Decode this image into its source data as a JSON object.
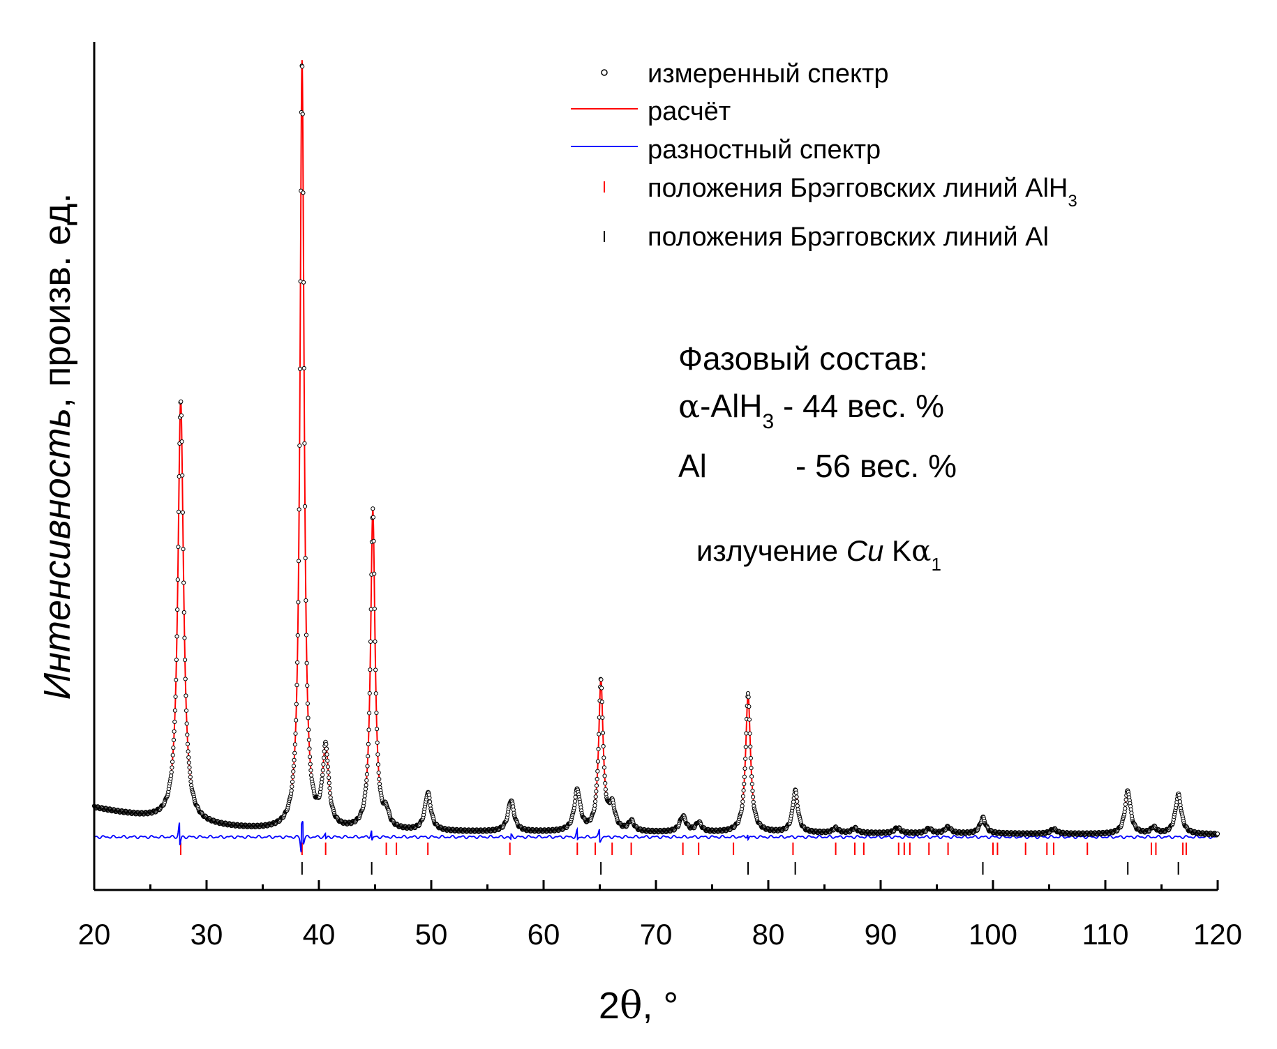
{
  "chart_data": {
    "type": "line",
    "title": "",
    "xlabel_prefix": "2",
    "xlabel_symbol": "θ",
    "xlabel_suffix": ", °",
    "ylabel_italic": "Интенсивность",
    "ylabel_rest": ", произв. ед.",
    "xlim": [
      20,
      120
    ],
    "ylim": [
      -0.08,
      1.0
    ],
    "xticks": [
      "20",
      "30",
      "40",
      "50",
      "60",
      "70",
      "80",
      "90",
      "100",
      "110",
      "120"
    ],
    "yaxis_ticks_labels": false,
    "grid": false,
    "legend_position": "top-right",
    "colors": {
      "observed": "#000000",
      "calculated": "#ff0000",
      "difference": "#0000ff",
      "bragg_alh3": "#ff0000",
      "bragg_al": "#000000"
    },
    "series": [
      {
        "name": "измеренный спектр",
        "style": "open-circles",
        "color": "#000000"
      },
      {
        "name": "расчёт",
        "style": "line",
        "color": "#ff0000"
      },
      {
        "name": "разностный спектр",
        "style": "line",
        "color": "#0000ff"
      },
      {
        "name": "положения Брэгговских линий AlH",
        "name_sub": "3",
        "style": "tick",
        "color": "#ff0000"
      },
      {
        "name": "положения Брэгговских линий Al",
        "style": "tick",
        "color": "#000000"
      }
    ],
    "background": {
      "at20": 0.03,
      "at40": 0.0,
      "at120": -0.004
    },
    "peaks": [
      {
        "x": 27.7,
        "height": 0.535,
        "width": 0.3
      },
      {
        "x": 38.5,
        "height": 0.975,
        "width": 0.22
      },
      {
        "x": 40.6,
        "height": 0.1,
        "width": 0.32
      },
      {
        "x": 44.8,
        "height": 0.405,
        "width": 0.24
      },
      {
        "x": 46.0,
        "height": 0.018,
        "width": 0.3
      },
      {
        "x": 49.7,
        "height": 0.048,
        "width": 0.32
      },
      {
        "x": 57.1,
        "height": 0.04,
        "width": 0.32
      },
      {
        "x": 63.0,
        "height": 0.052,
        "width": 0.32
      },
      {
        "x": 65.1,
        "height": 0.19,
        "width": 0.24
      },
      {
        "x": 66.1,
        "height": 0.03,
        "width": 0.32
      },
      {
        "x": 67.8,
        "height": 0.013,
        "width": 0.3
      },
      {
        "x": 72.4,
        "height": 0.02,
        "width": 0.34
      },
      {
        "x": 73.8,
        "height": 0.012,
        "width": 0.3
      },
      {
        "x": 78.2,
        "height": 0.175,
        "width": 0.26
      },
      {
        "x": 82.4,
        "height": 0.053,
        "width": 0.28
      },
      {
        "x": 86.0,
        "height": 0.006,
        "width": 0.3
      },
      {
        "x": 87.7,
        "height": 0.006,
        "width": 0.3
      },
      {
        "x": 91.5,
        "height": 0.007,
        "width": 0.32
      },
      {
        "x": 94.3,
        "height": 0.006,
        "width": 0.3
      },
      {
        "x": 96.0,
        "height": 0.008,
        "width": 0.32
      },
      {
        "x": 99.1,
        "height": 0.02,
        "width": 0.3
      },
      {
        "x": 105.4,
        "height": 0.006,
        "width": 0.34
      },
      {
        "x": 112.0,
        "height": 0.055,
        "width": 0.3
      },
      {
        "x": 114.3,
        "height": 0.008,
        "width": 0.3
      },
      {
        "x": 116.5,
        "height": 0.05,
        "width": 0.32
      }
    ],
    "bragg_alh3": [
      27.7,
      38.5,
      40.6,
      46.0,
      46.9,
      49.7,
      57.0,
      63.0,
      64.6,
      66.1,
      67.8,
      72.4,
      73.8,
      76.9,
      82.2,
      86.0,
      87.7,
      88.5,
      91.6,
      92.1,
      92.6,
      94.3,
      96.0,
      100.0,
      100.4,
      102.9,
      104.8,
      105.4,
      108.4,
      114.1,
      114.5,
      116.9,
      117.2
    ],
    "bragg_al": [
      38.5,
      44.7,
      65.1,
      78.2,
      82.4,
      99.1,
      112.0,
      116.5
    ],
    "difference_spikes": [
      {
        "x": 27.6,
        "amp": 0.018
      },
      {
        "x": 38.45,
        "amp": -0.022
      },
      {
        "x": 38.6,
        "amp": 0.016
      },
      {
        "x": 40.6,
        "amp": 0.004
      },
      {
        "x": 44.7,
        "amp": 0.008
      },
      {
        "x": 57.1,
        "amp": -0.004
      },
      {
        "x": 63.0,
        "amp": 0.008
      },
      {
        "x": 65.0,
        "amp": 0.01
      },
      {
        "x": 78.2,
        "amp": 0.004
      }
    ]
  },
  "annotation": {
    "phase_title": "Фазовый состав:",
    "line1_alpha": "α",
    "line1_formula": "-AlH",
    "line1_sub": "3",
    "line1_value": " - 44 вес. %",
    "line2_formula": "Al",
    "line2_value": "- 56 вес. %",
    "radiation_prefix": "излучение ",
    "radiation_element": "Cu",
    "radiation_line": " K",
    "radiation_alpha": "α",
    "radiation_sub": "1"
  }
}
